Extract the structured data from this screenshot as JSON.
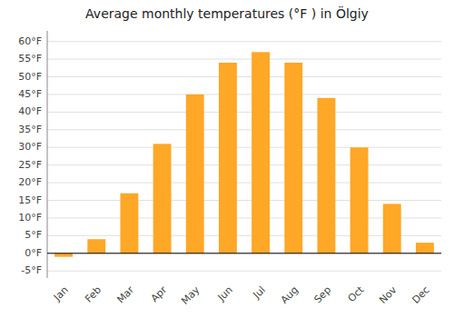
{
  "chart_data": {
    "type": "bar",
    "title": "Average monthly temperatures (°F ) in Ölgiy",
    "categories": [
      "Jan",
      "Feb",
      "Mar",
      "Apr",
      "May",
      "Jun",
      "Jul",
      "Aug",
      "Sep",
      "Oct",
      "Nov",
      "Dec"
    ],
    "values": [
      -1,
      4,
      17,
      31,
      45,
      54,
      57,
      54,
      44,
      30,
      14,
      3
    ],
    "color": "#FFA726",
    "ylim": [
      -7,
      63
    ],
    "yticks": [
      {
        "value": -5,
        "label": "-5°F"
      },
      {
        "value": 0,
        "label": "0°F"
      },
      {
        "value": 5,
        "label": "5°F"
      },
      {
        "value": 10,
        "label": "10°F"
      },
      {
        "value": 15,
        "label": "15°F"
      },
      {
        "value": 20,
        "label": "20°F"
      },
      {
        "value": 25,
        "label": "25°F"
      },
      {
        "value": 30,
        "label": "30°F"
      },
      {
        "value": 35,
        "label": "35°F"
      },
      {
        "value": 40,
        "label": "40°F"
      },
      {
        "value": 45,
        "label": "45°F"
      },
      {
        "value": 50,
        "label": "50°F"
      },
      {
        "value": 55,
        "label": "55°F"
      },
      {
        "value": 60,
        "label": "60°F"
      }
    ],
    "grid": true
  }
}
